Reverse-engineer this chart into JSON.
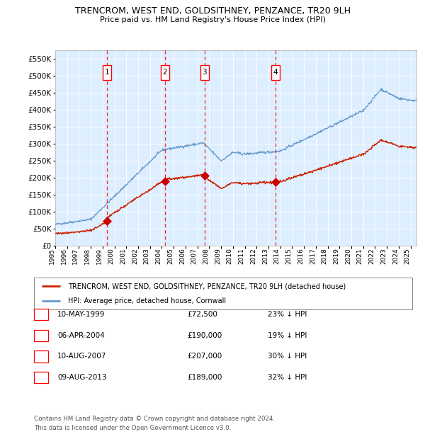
{
  "title": "TRENCROM, WEST END, GOLDSITHNEY, PENZANCE, TR20 9LH",
  "subtitle": "Price paid vs. HM Land Registry's House Price Index (HPI)",
  "legend_red": "TRENCROM, WEST END, GOLDSITHNEY, PENZANCE, TR20 9LH (detached house)",
  "legend_blue": "HPI: Average price, detached house, Cornwall",
  "footnote1": "Contains HM Land Registry data © Crown copyright and database right 2024.",
  "footnote2": "This data is licensed under the Open Government Licence v3.0.",
  "transactions": [
    {
      "num": 1,
      "date": "10-MAY-1999",
      "price": 72500,
      "pct": "23%",
      "dir": "↓"
    },
    {
      "num": 2,
      "date": "06-APR-2004",
      "price": 190000,
      "pct": "19%",
      "dir": "↓"
    },
    {
      "num": 3,
      "date": "10-AUG-2007",
      "price": 207000,
      "pct": "30%",
      "dir": "↓"
    },
    {
      "num": 4,
      "date": "09-AUG-2013",
      "price": 189000,
      "pct": "32%",
      "dir": "↓"
    }
  ],
  "transaction_years": [
    1999.36,
    2004.27,
    2007.61,
    2013.61
  ],
  "ylim": [
    0,
    575000
  ],
  "xlim_left": 1995.0,
  "xlim_right": 2025.5,
  "bg_color": "#ddeeff",
  "grid_color": "#ccddee",
  "red_line_color": "#cc2200",
  "blue_line_color": "#6699cc",
  "red_marker_color": "#cc0000"
}
